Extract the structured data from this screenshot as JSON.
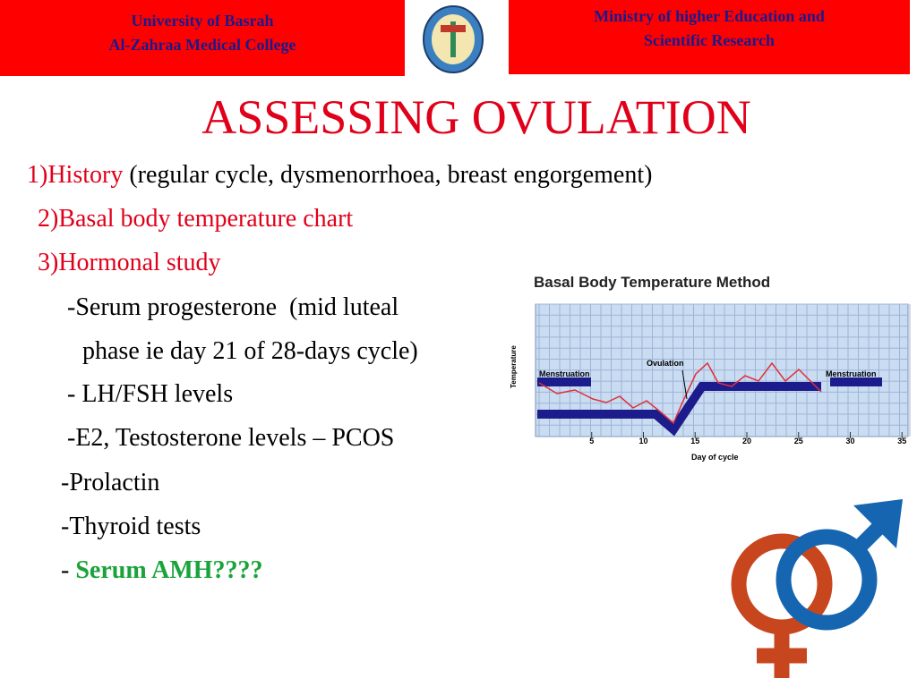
{
  "header": {
    "left": [
      "University of Basrah",
      "Al-Zahraa Medical College"
    ],
    "right": [
      "Ministry of higher Education  and",
      "Scientific Research"
    ]
  },
  "title": "ASSESSING OVULATION",
  "items": [
    {
      "lead": "1)History",
      "rest": " (regular cycle, dysmenorrhoea, breast engorgement)"
    },
    {
      "lead": "2)Basal body temperature chart"
    },
    {
      "lead": "3)Hormonal study"
    },
    {
      "rest": "-Serum progesterone  (mid luteal"
    },
    {
      "rest": " phase ie day 21 of 28-days cycle)"
    },
    {
      "rest": "- LH/FSH levels"
    },
    {
      "rest": "-E2, Testosterone levels – PCOS"
    },
    {
      "rest": "-Prolactin"
    },
    {
      "rest": "-Thyroid tests"
    },
    {
      "rest": "- ",
      "highlight": "Serum AMH????"
    }
  ],
  "figure": {
    "title": "Basal Body Temperature Method",
    "y_label": "Temperature",
    "x_label": "Day of cycle",
    "labels": [
      "Menstruation",
      "Ovulation",
      "Menstruation"
    ],
    "xticks": [
      5,
      10,
      15,
      20,
      25,
      30,
      35
    ]
  }
}
